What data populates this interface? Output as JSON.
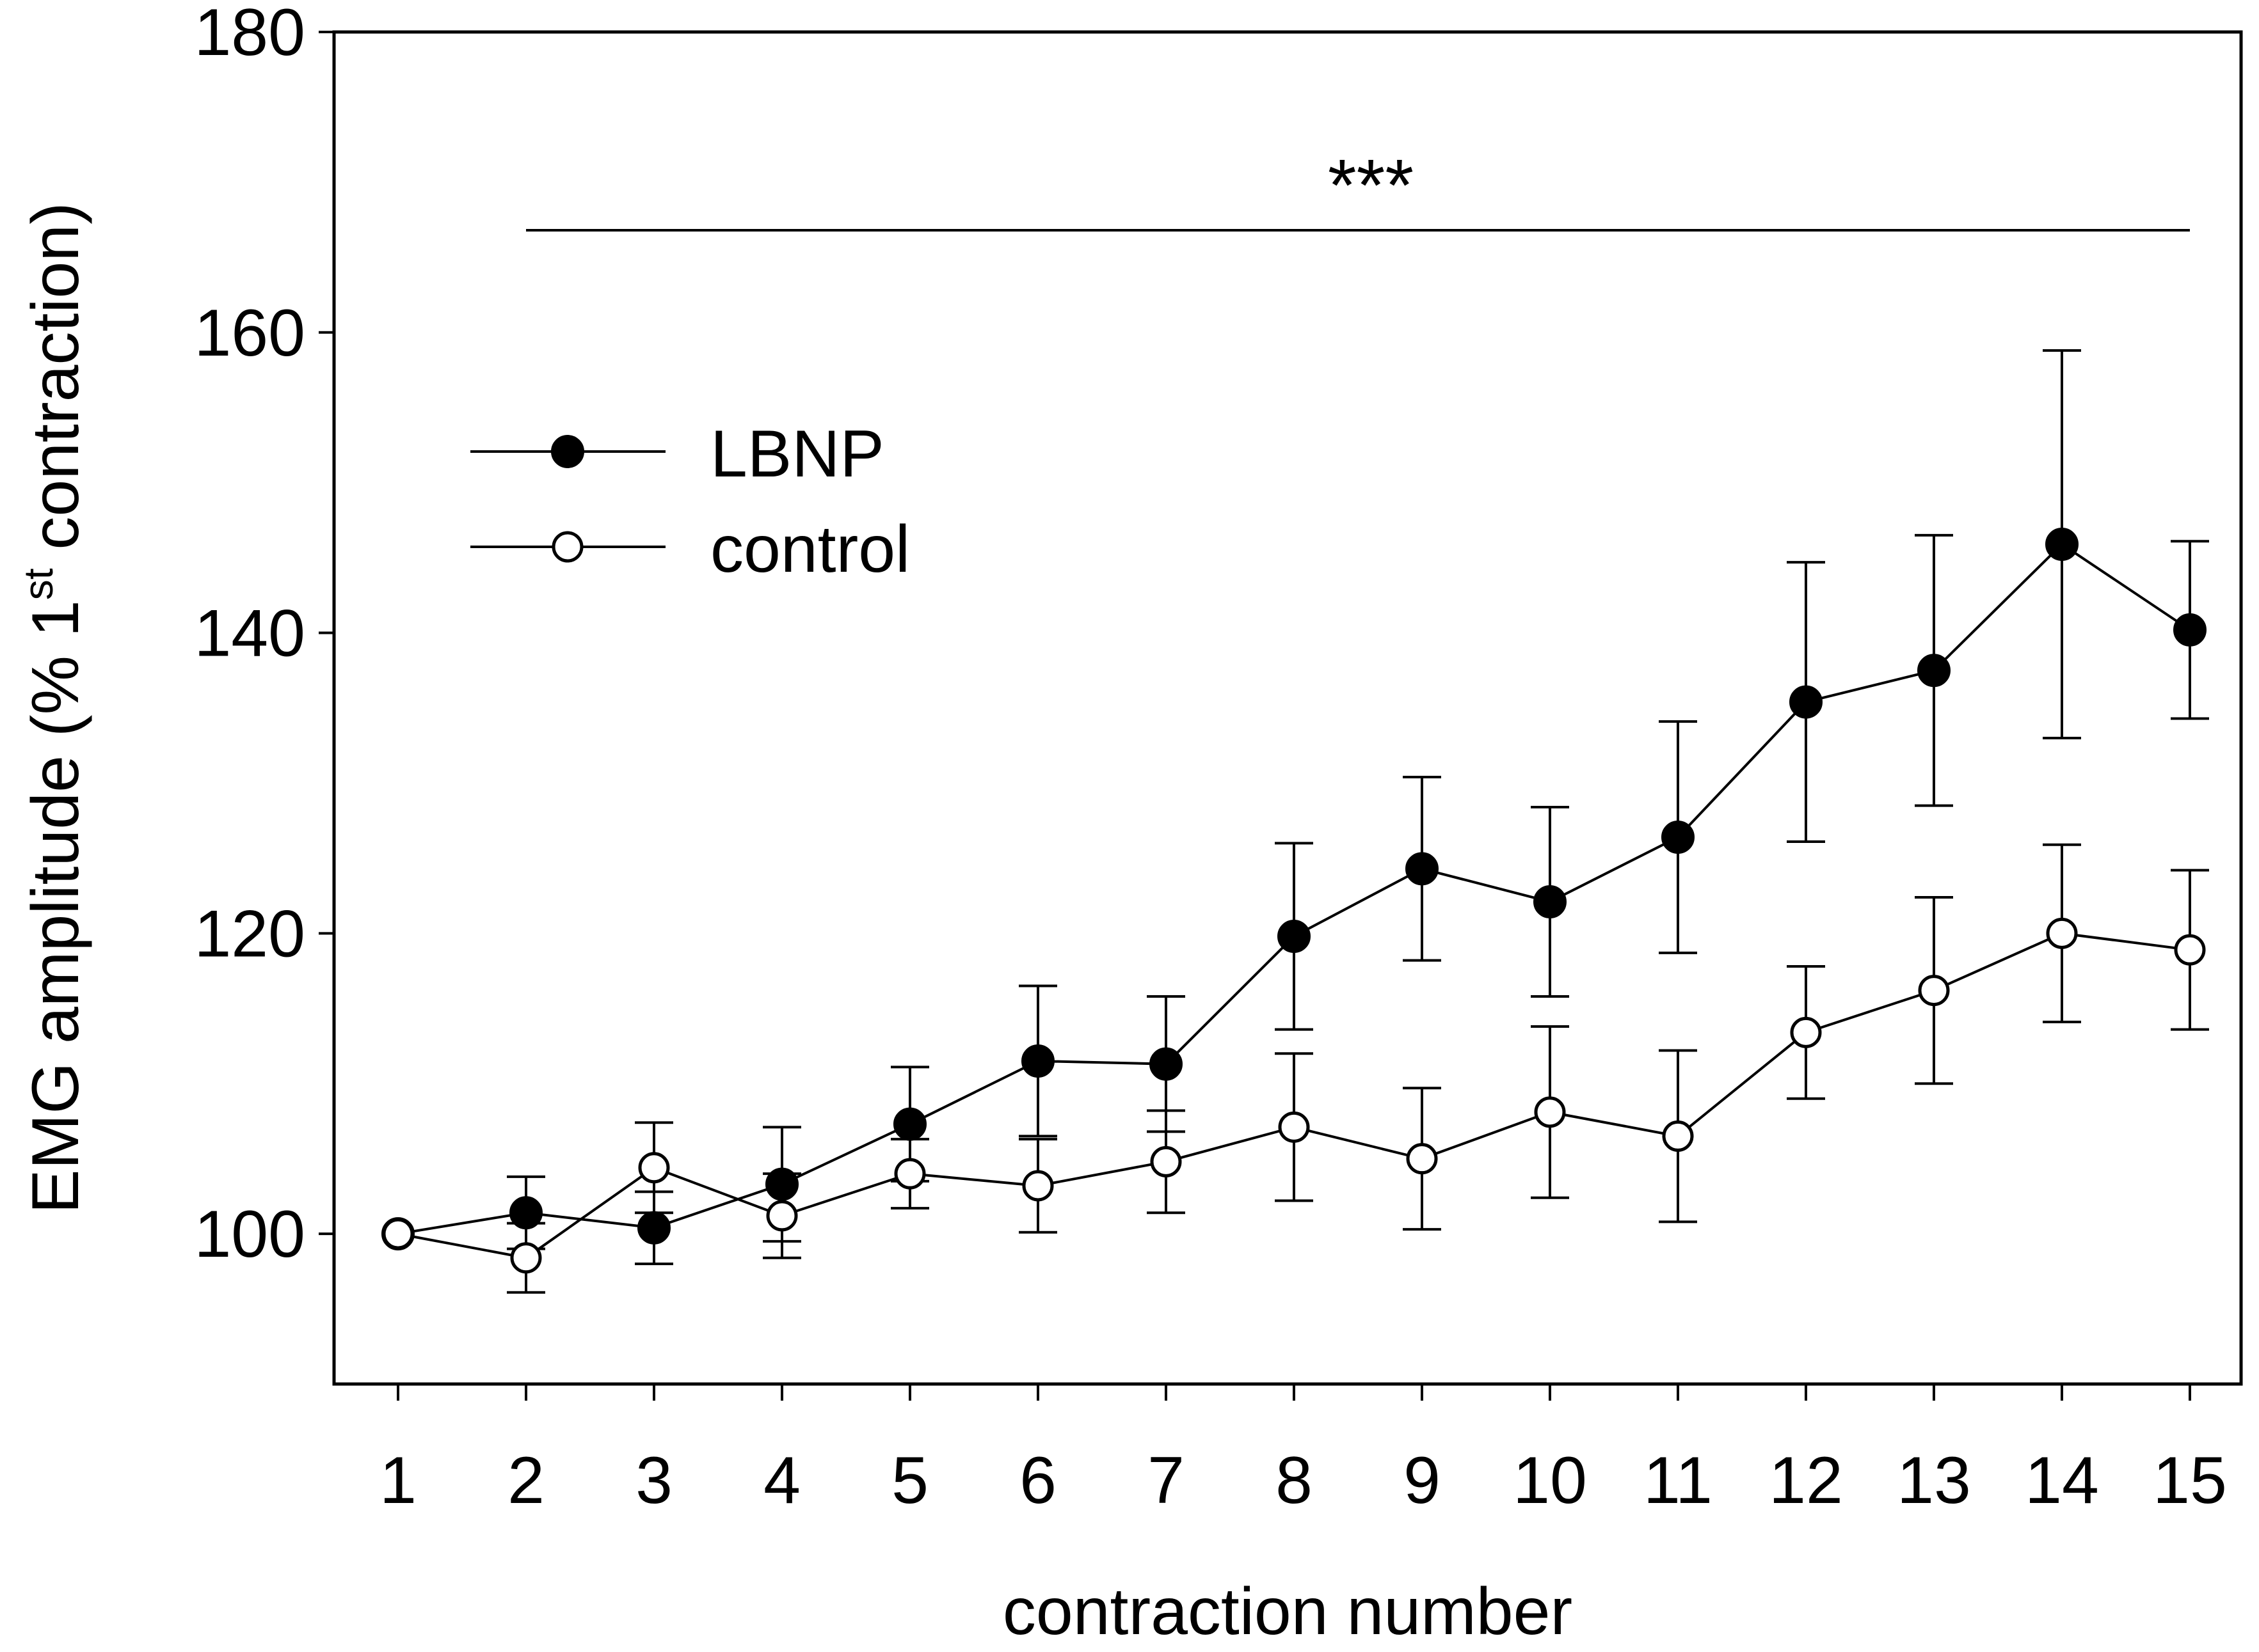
{
  "chart_data": {
    "type": "line",
    "title": "",
    "xlabel": "contraction number",
    "ylabel": {
      "main": "EMG amplitude (% 1",
      "superscript": "st",
      "tail": " contraction)"
    },
    "xlim": [
      0.5,
      15.4
    ],
    "ylim": [
      90,
      180
    ],
    "x": [
      1,
      2,
      3,
      4,
      5,
      6,
      7,
      8,
      9,
      10,
      11,
      12,
      13,
      14,
      15
    ],
    "x_tick_labels": [
      "1",
      "2",
      "3",
      "4",
      "5",
      "6",
      "7",
      "8",
      "9",
      "10",
      "11",
      "12",
      "13",
      "14",
      "15"
    ],
    "y_ticks": [
      100,
      120,
      140,
      160,
      180
    ],
    "y_tick_labels": [
      "100",
      "120",
      "140",
      "160",
      "180"
    ],
    "series": [
      {
        "name": "LBNP",
        "marker": "filled-circle",
        "values": [
          100,
          101.4,
          100.4,
          103.3,
          107.3,
          111.5,
          111.3,
          119.8,
          124.3,
          122.1,
          126.4,
          135.4,
          137.5,
          145.9,
          140.2
        ],
        "error": [
          0,
          2.4,
          2.4,
          3.8,
          3.8,
          5.0,
          4.5,
          6.2,
          6.1,
          6.3,
          7.7,
          9.3,
          9.0,
          12.9,
          5.9
        ]
      },
      {
        "name": "control",
        "marker": "open-circle",
        "values": [
          100,
          98.4,
          104.4,
          101.2,
          104.0,
          103.2,
          104.8,
          107.1,
          105.0,
          108.1,
          106.5,
          113.4,
          116.2,
          120.0,
          118.9
        ],
        "error": [
          0,
          2.3,
          3.0,
          2.8,
          2.3,
          3.1,
          3.4,
          4.9,
          4.7,
          5.7,
          5.7,
          4.4,
          6.2,
          5.9,
          5.3
        ]
      }
    ],
    "annotation": {
      "text": "***",
      "x_start": 2,
      "x_end": 15,
      "y_line": 166.8,
      "y_text": 171.5
    },
    "legend": {
      "position": "upper-left",
      "entries": [
        "LBNP",
        "control"
      ]
    },
    "grid": false,
    "colors": {
      "line": "#000000",
      "marker_fill_LBNP": "#000000",
      "marker_fill_control": "#ffffff"
    }
  }
}
